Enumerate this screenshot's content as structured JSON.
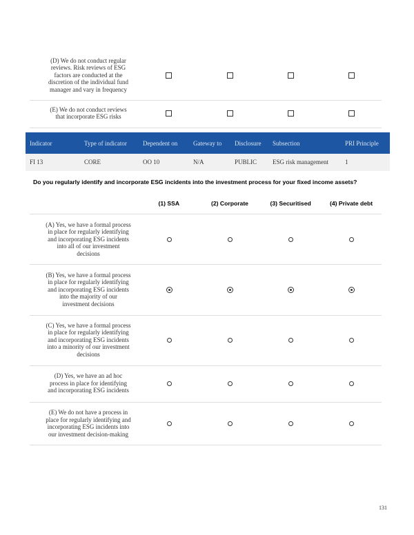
{
  "prev_table": {
    "rows": [
      {
        "label": [
          "(D) We do not conduct regular",
          "reviews. Risk reviews of ESG",
          "factors are conducted at the",
          "discretion of the individual fund",
          "manager and vary in frequency"
        ]
      },
      {
        "label": [
          "(E) We do not conduct reviews",
          "that incorporate ESG risks"
        ]
      }
    ]
  },
  "indicator": {
    "headers": [
      "Indicator",
      "Type of indicator",
      "Dependent on",
      "Gateway to",
      "Disclosure",
      "Subsection",
      "PRI Principle"
    ],
    "values": [
      "FI 13",
      "CORE",
      "OO 10",
      "N/A",
      "PUBLIC",
      "ESG risk management",
      "1"
    ]
  },
  "question": "Do you regularly identify and incorporate ESG incidents into the investment process for your fixed income assets?",
  "options_table": {
    "columns": [
      "(1) SSA",
      "(2) Corporate",
      "(3) Securitised",
      "(4) Private debt"
    ],
    "rows": [
      {
        "label": [
          "(A) Yes, we have a formal process",
          "in place for regularly identifying",
          "and incorporating ESG incidents",
          "into all of our investment",
          "decisions"
        ],
        "selected": [
          false,
          false,
          false,
          false
        ]
      },
      {
        "label": [
          "(B) Yes, we have a formal process",
          "in place for regularly identifying",
          "and incorporating ESG incidents",
          "into the majority of our",
          "investment decisions"
        ],
        "selected": [
          true,
          true,
          true,
          true
        ]
      },
      {
        "label": [
          "(C) Yes, we have a formal process",
          "in place for regularly identifying",
          "and incorporating ESG incidents",
          "into a minority of our investment",
          "decisions"
        ],
        "selected": [
          false,
          false,
          false,
          false
        ]
      },
      {
        "label": [
          "(D) Yes, we have an ad hoc",
          "process in place for identifying",
          "and incorporating ESG incidents"
        ],
        "selected": [
          false,
          false,
          false,
          false
        ]
      },
      {
        "label": [
          "(E) We do not have a process in",
          "place for regularly identifying and",
          "incorporating ESG incidents into",
          "our investment decision-making"
        ],
        "selected": [
          false,
          false,
          false,
          false
        ]
      }
    ]
  },
  "page_number": "131"
}
